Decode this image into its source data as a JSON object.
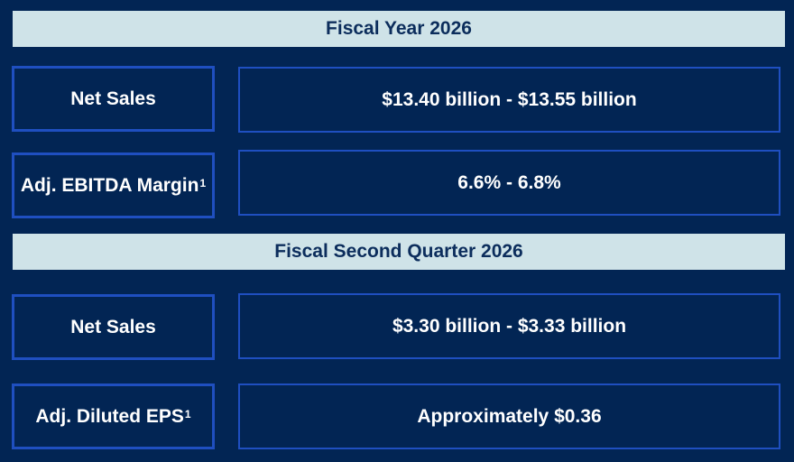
{
  "sections": [
    {
      "title": "Fiscal Year 2026",
      "rows": [
        {
          "label": "Net Sales",
          "footnote": "",
          "value": "$13.40 billion - $13.55 billion"
        },
        {
          "label": "Adj. EBITDA Margin",
          "footnote": "1",
          "value": "6.6% - 6.8%"
        }
      ]
    },
    {
      "title": "Fiscal Second Quarter 2026",
      "rows": [
        {
          "label": "Net Sales",
          "footnote": "",
          "value": "$3.30 billion - $3.33 billion"
        },
        {
          "label": "Adj. Diluted EPS",
          "footnote": "1",
          "value": "Approximately $0.36"
        }
      ]
    }
  ],
  "colors": {
    "background": "#022554",
    "header_bar": "#cfe3e8",
    "header_text": "#0c2d5c",
    "border": "#1f4fc0",
    "text": "#ffffff"
  }
}
